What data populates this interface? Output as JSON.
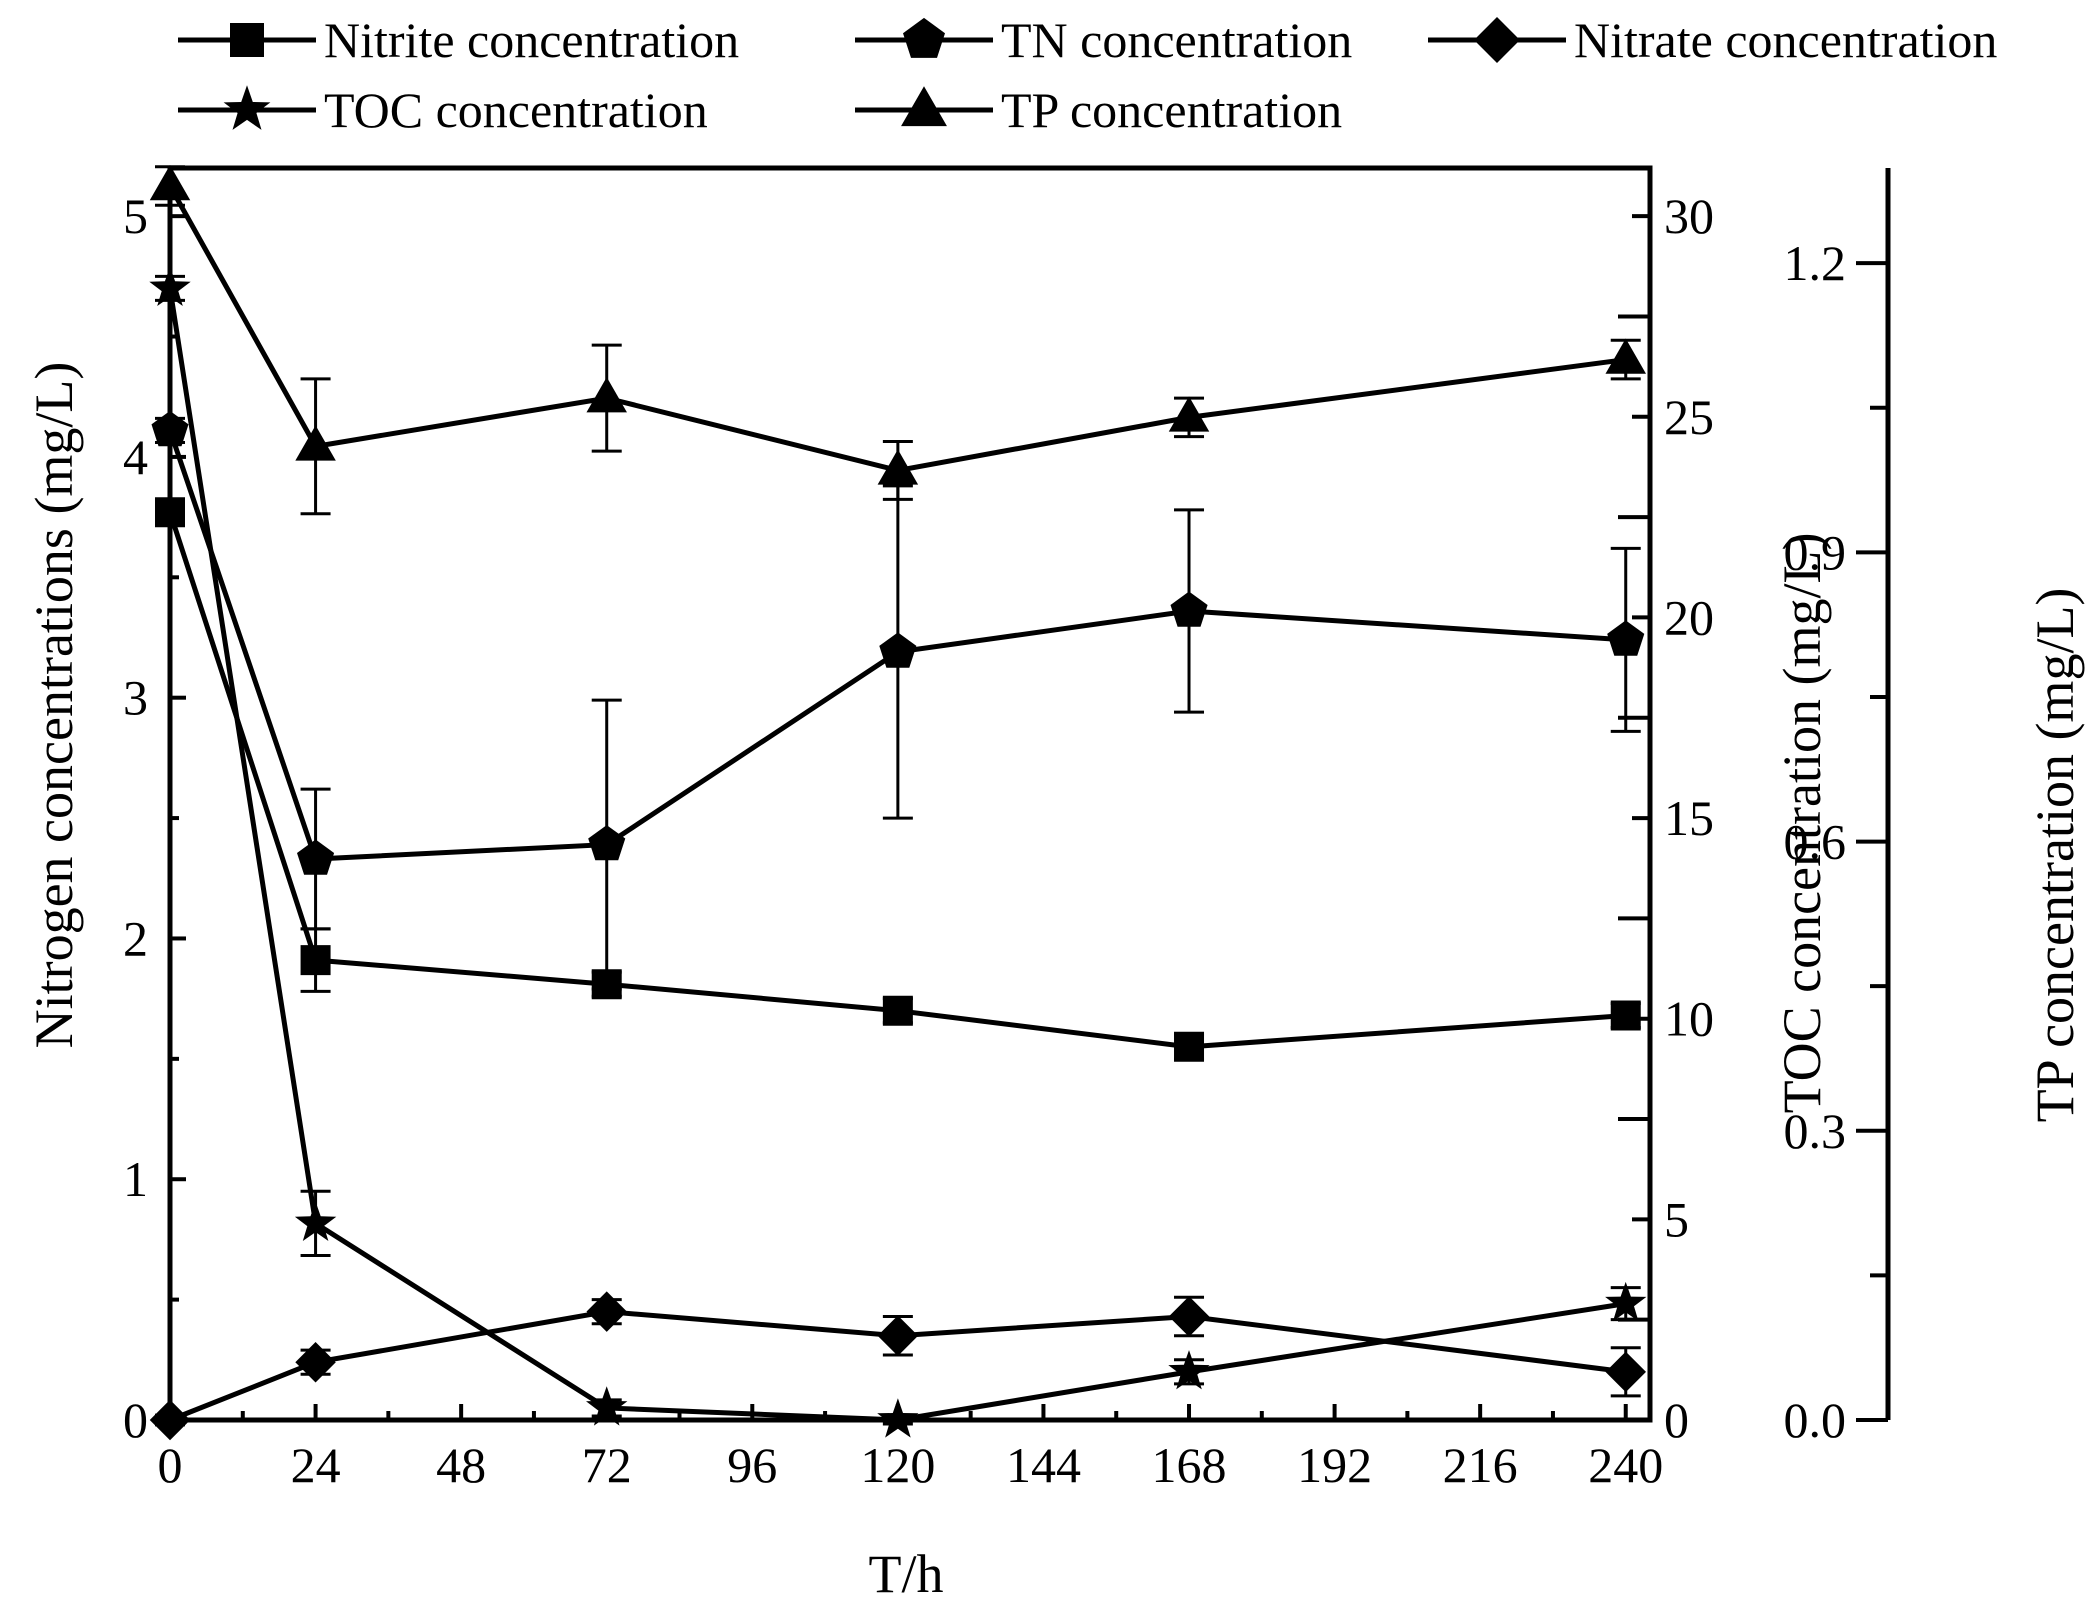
{
  "chart_data": {
    "type": "line",
    "xlabel": "T/h",
    "x_ticks": [
      0,
      24,
      48,
      72,
      96,
      120,
      144,
      168,
      192,
      216,
      240
    ],
    "xlim": [
      0,
      244
    ],
    "axes": {
      "left": {
        "label": "Nitrogen concentrations (mg/L)",
        "ylim": [
          0,
          5.2
        ],
        "ticks": [
          0,
          1,
          2,
          3,
          4,
          5
        ],
        "tick_labels": [
          "0",
          "1",
          "2",
          "3",
          "4",
          "5"
        ]
      },
      "right1": {
        "label": "TOC concentration (mg/L)",
        "ylim": [
          0,
          31.2
        ],
        "ticks": [
          0,
          5,
          10,
          15,
          20,
          25,
          30
        ],
        "tick_labels": [
          "0",
          "5",
          "10",
          "15",
          "20",
          "25",
          "30"
        ]
      },
      "right2": {
        "label": "TP concentration (mg/L)",
        "ylim": [
          0,
          1.2987
        ],
        "ticks": [
          0,
          0.3,
          0.6,
          0.9,
          1.2
        ],
        "tick_labels": [
          "0.0",
          "0.3",
          "0.6",
          "0.9",
          "1.2"
        ]
      }
    },
    "series": [
      {
        "name": "Nitrite concentration",
        "marker": "square",
        "axis": "left",
        "x": [
          0,
          24,
          72,
          120,
          168,
          240
        ],
        "values": [
          3.77,
          1.91,
          1.81,
          1.7,
          1.55,
          1.68
        ],
        "errors": [
          0.05,
          0.13,
          0.05,
          0.05,
          0.05,
          0.05
        ]
      },
      {
        "name": "TN concentration",
        "marker": "pentagon",
        "axis": "left",
        "x": [
          0,
          24,
          72,
          120,
          168,
          240
        ],
        "values": [
          4.11,
          2.33,
          2.39,
          3.19,
          3.36,
          3.24
        ],
        "errors": [
          0.05,
          0.29,
          0.6,
          0.69,
          0.42,
          0.38
        ]
      },
      {
        "name": "Nitrate concentration",
        "marker": "diamond",
        "axis": "left",
        "x": [
          0,
          24,
          72,
          120,
          168,
          240
        ],
        "values": [
          0.0,
          0.24,
          0.45,
          0.35,
          0.43,
          0.2
        ],
        "errors": [
          0.02,
          0.05,
          0.05,
          0.08,
          0.08,
          0.1
        ]
      },
      {
        "name": "TOC concentration",
        "marker": "star",
        "axis": "right1",
        "x": [
          0,
          24,
          72,
          120,
          168,
          240
        ],
        "values": [
          28.2,
          4.9,
          0.3,
          0.0,
          1.2,
          2.9
        ],
        "errors": [
          0.3,
          0.8,
          0.2,
          0.1,
          0.3,
          0.4
        ]
      },
      {
        "name": "TP concentration",
        "marker": "triangle",
        "axis": "right2",
        "x": [
          0,
          24,
          72,
          120,
          168,
          240
        ],
        "values": [
          1.28,
          1.01,
          1.06,
          0.985,
          1.04,
          1.1
        ],
        "errors": [
          0.02,
          0.07,
          0.055,
          0.03,
          0.02,
          0.02
        ]
      }
    ]
  }
}
